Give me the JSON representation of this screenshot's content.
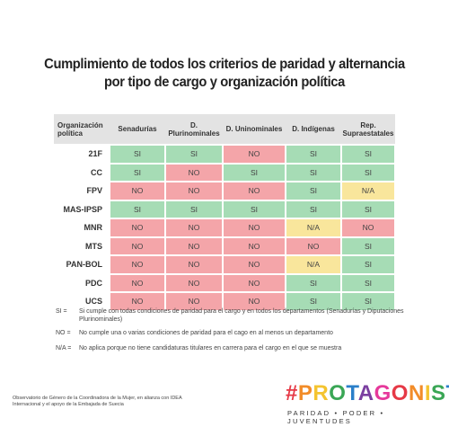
{
  "title": {
    "line1": "Cumplimiento de todos los criterios de paridad y alternancia",
    "line2": "por tipo de cargo y organización política"
  },
  "table": {
    "header": [
      "Organización política",
      "Senadurías",
      "D. Plurinominales",
      "D. Uninominales",
      "D. Indígenas",
      "Rep. Supraestatales"
    ],
    "rows": [
      [
        "21F",
        "SI",
        "SI",
        "NO",
        "SI",
        "SI"
      ],
      [
        "CC",
        "SI",
        "NO",
        "SI",
        "SI",
        "SI"
      ],
      [
        "FPV",
        "NO",
        "NO",
        "NO",
        "SI",
        "N/A"
      ],
      [
        "MAS-IPSP",
        "SI",
        "SI",
        "SI",
        "SI",
        "SI"
      ],
      [
        "MNR",
        "NO",
        "NO",
        "NO",
        "N/A",
        "NO"
      ],
      [
        "MTS",
        "NO",
        "NO",
        "NO",
        "NO",
        "SI"
      ],
      [
        "PAN-BOL",
        "NO",
        "NO",
        "NO",
        "N/A",
        "SI"
      ],
      [
        "PDC",
        "NO",
        "NO",
        "NO",
        "SI",
        "SI"
      ],
      [
        "UCS",
        "NO",
        "NO",
        "NO",
        "SI",
        "SI"
      ]
    ],
    "cell_colors": {
      "SI": "#a6dcb5",
      "NO": "#f4a5a9",
      "N/A": "#f9e69c"
    }
  },
  "notes": [
    {
      "key": "SI =",
      "text": "Si cumple con todas condiciones de paridad para el cargo y en todos los departamentos (Senadurías y Diputaciones Plurinominales)"
    },
    {
      "key": "NO =",
      "text": "No cumple una o varias condiciones de paridad para el cago en al menos un departamento"
    },
    {
      "key": "N/A =",
      "text": "No aplica porque no tiene candidaturas titulares en carrera para el cargo en el que se muestra"
    }
  ],
  "footer": "Observatorio de Género de la Coordinadora de la Mujer, en alianza con IDEA Internacional y el apoyo de la Embajada de Suecia",
  "brand": {
    "name": "#PROTAGONISTAS",
    "tagline": "PARIDAD • PODER • JUVENTUDES"
  }
}
